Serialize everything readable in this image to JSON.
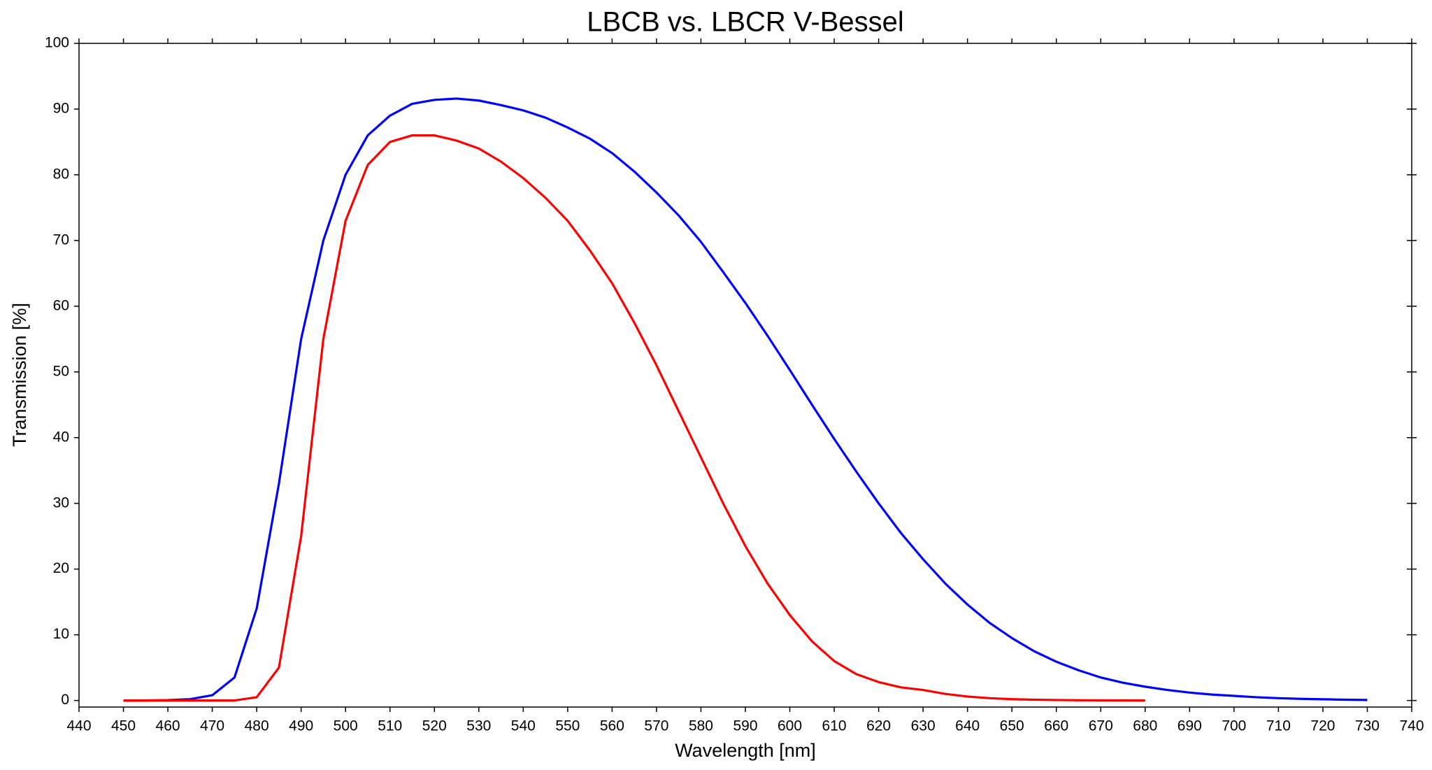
{
  "chart_data": {
    "type": "line",
    "title": "LBCB vs. LBCR V-Bessel",
    "xlabel": "Wavelength [nm]",
    "ylabel": "Transmission [%]",
    "xlim": [
      440,
      740
    ],
    "ylim": [
      -1,
      100
    ],
    "xticks": [
      440,
      450,
      460,
      470,
      480,
      490,
      500,
      510,
      520,
      530,
      540,
      550,
      560,
      570,
      580,
      590,
      600,
      610,
      620,
      630,
      640,
      650,
      660,
      670,
      680,
      690,
      700,
      710,
      720,
      730,
      740
    ],
    "yticks": [
      0,
      10,
      20,
      30,
      40,
      50,
      60,
      70,
      80,
      90,
      100
    ],
    "grid": false,
    "series": [
      {
        "color": "#0000ff",
        "x": [
          450,
          455,
          460,
          465,
          470,
          475,
          480,
          485,
          490,
          495,
          500,
          505,
          510,
          515,
          520,
          525,
          530,
          535,
          540,
          545,
          550,
          555,
          560,
          565,
          570,
          575,
          580,
          585,
          590,
          595,
          600,
          605,
          610,
          615,
          620,
          625,
          630,
          635,
          640,
          645,
          650,
          655,
          660,
          665,
          670,
          675,
          680,
          685,
          690,
          695,
          700,
          705,
          710,
          715,
          720,
          725,
          730
        ],
        "values": [
          0,
          0,
          0.05,
          0.2,
          0.8,
          3.5,
          14,
          33,
          55,
          70,
          80,
          86,
          89,
          90.8,
          91.4,
          91.6,
          91.3,
          90.6,
          89.8,
          88.7,
          87.2,
          85.5,
          83.3,
          80.5,
          77.3,
          73.8,
          69.8,
          65.2,
          60.5,
          55.5,
          50.3,
          45,
          39.8,
          34.8,
          30,
          25.5,
          21.5,
          17.8,
          14.6,
          11.8,
          9.5,
          7.5,
          5.9,
          4.6,
          3.5,
          2.7,
          2.1,
          1.6,
          1.2,
          0.9,
          0.7,
          0.5,
          0.35,
          0.25,
          0.18,
          0.12,
          0.08
        ]
      },
      {
        "color": "#ff0000",
        "x": [
          450,
          455,
          460,
          465,
          470,
          475,
          480,
          485,
          490,
          495,
          500,
          505,
          510,
          515,
          520,
          525,
          530,
          535,
          540,
          545,
          550,
          555,
          560,
          565,
          570,
          575,
          580,
          585,
          590,
          595,
          600,
          605,
          610,
          615,
          620,
          625,
          630,
          635,
          640,
          645,
          650,
          655,
          660,
          665,
          670,
          675,
          680
        ],
        "values": [
          0,
          0,
          0,
          0,
          0,
          0,
          0.5,
          5,
          25,
          55,
          73,
          81.5,
          85,
          86,
          86,
          85.2,
          84,
          82,
          79.5,
          76.5,
          73,
          68.5,
          63.5,
          57.5,
          51,
          44,
          37,
          30,
          23.5,
          17.8,
          13,
          9,
          6,
          4,
          2.8,
          2,
          1.6,
          1,
          0.6,
          0.35,
          0.2,
          0.12,
          0.07,
          0.04,
          0.02,
          0.01,
          0
        ]
      }
    ]
  }
}
